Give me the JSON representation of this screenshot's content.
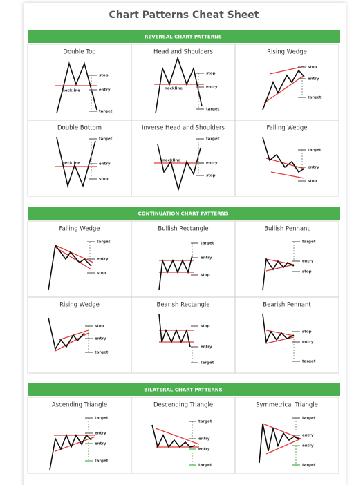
{
  "title": "Chart Patterns Cheat Sheet",
  "sections": [
    {
      "header": "REVERSAL CHART PATTERNS",
      "cells": [
        {
          "title": "Double Top",
          "labels": [
            "stop",
            "entry",
            "target",
            "neckline"
          ]
        },
        {
          "title": "Head and Shoulders",
          "labels": [
            "stop",
            "entry",
            "target",
            "neckline"
          ]
        },
        {
          "title": "Rising Wedge",
          "labels": [
            "stop",
            "entry",
            "target"
          ]
        },
        {
          "title": "Double Bottom",
          "labels": [
            "target",
            "entry",
            "stop",
            "neckline"
          ]
        },
        {
          "title": "Inverse Head and Shoulders",
          "labels": [
            "target",
            "entry",
            "stop",
            "neckline"
          ]
        },
        {
          "title": "Falling Wedge",
          "labels": [
            "target",
            "entry",
            "stop"
          ]
        }
      ]
    },
    {
      "header": "CONTINUATION CHART PATTERNS",
      "cells": [
        {
          "title": "Falling Wedge",
          "labels": [
            "target",
            "entry",
            "stop"
          ]
        },
        {
          "title": "Bullish Rectangle",
          "labels": [
            "target",
            "entry",
            "stop"
          ]
        },
        {
          "title": "Bullish Pennant",
          "labels": [
            "target",
            "entry",
            "stop"
          ]
        },
        {
          "title": "Rising Wedge",
          "labels": [
            "stop",
            "entry",
            "target"
          ]
        },
        {
          "title": "Bearish Rectangle",
          "labels": [
            "stop",
            "entry",
            "target"
          ]
        },
        {
          "title": "Bearish Pennant",
          "labels": [
            "stop",
            "entry",
            "target"
          ]
        }
      ]
    },
    {
      "header": "BILATERAL CHART PATTERNS",
      "cells": [
        {
          "title": "Ascending Triangle",
          "labels": [
            "target",
            "entry",
            "entry",
            "target"
          ]
        },
        {
          "title": "Descending Triangle",
          "labels": [
            "target",
            "entry",
            "entry",
            "target"
          ]
        },
        {
          "title": "Symmetrical Triangle",
          "labels": [
            "target",
            "entry",
            "entry",
            "target"
          ]
        }
      ]
    }
  ]
}
